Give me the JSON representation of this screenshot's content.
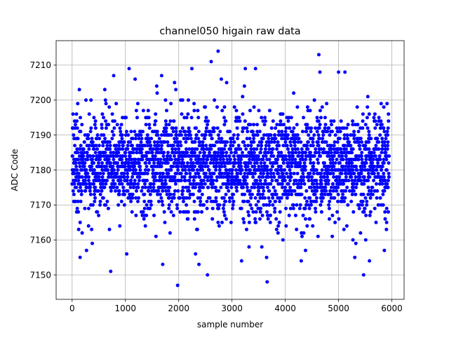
{
  "chart_data": {
    "type": "scatter",
    "title": "channel050 higain raw data",
    "xlabel": "sample number",
    "ylabel": "ADC Code",
    "xlim": [
      -300,
      6230
    ],
    "ylim": [
      7143,
      7217
    ],
    "xticks": [
      0,
      1000,
      2000,
      3000,
      4000,
      5000,
      6000
    ],
    "yticks": [
      7150,
      7160,
      7170,
      7180,
      7190,
      7200,
      7210
    ],
    "grid": true,
    "marker_color": "#0000ff",
    "n_samples": 5950,
    "value_range": [
      7147,
      7214
    ],
    "typical_band": [
      7166,
      7197
    ],
    "center": 7181,
    "outlier_points": [
      {
        "x": 1980,
        "y": 7147
      },
      {
        "x": 2540,
        "y": 7150
      },
      {
        "x": 3660,
        "y": 7148
      },
      {
        "x": 5470,
        "y": 7150
      },
      {
        "x": 2740,
        "y": 7214
      },
      {
        "x": 2610,
        "y": 7211
      },
      {
        "x": 4630,
        "y": 7213
      },
      {
        "x": 1070,
        "y": 7209
      },
      {
        "x": 3250,
        "y": 7209
      },
      {
        "x": 4650,
        "y": 7208
      },
      {
        "x": 5000,
        "y": 7208
      },
      {
        "x": 5120,
        "y": 7208
      },
      {
        "x": 780,
        "y": 7207
      },
      {
        "x": 1680,
        "y": 7207
      },
      {
        "x": 2800,
        "y": 7206
      },
      {
        "x": 2900,
        "y": 7205
      },
      {
        "x": 150,
        "y": 7155
      },
      {
        "x": 1700,
        "y": 7153
      },
      {
        "x": 2380,
        "y": 7153
      },
      {
        "x": 3180,
        "y": 7154
      },
      {
        "x": 4300,
        "y": 7154
      },
      {
        "x": 5580,
        "y": 7154
      },
      {
        "x": 3320,
        "y": 7158
      },
      {
        "x": 3560,
        "y": 7158
      },
      {
        "x": 4380,
        "y": 7157
      },
      {
        "x": 5860,
        "y": 7157
      }
    ]
  }
}
